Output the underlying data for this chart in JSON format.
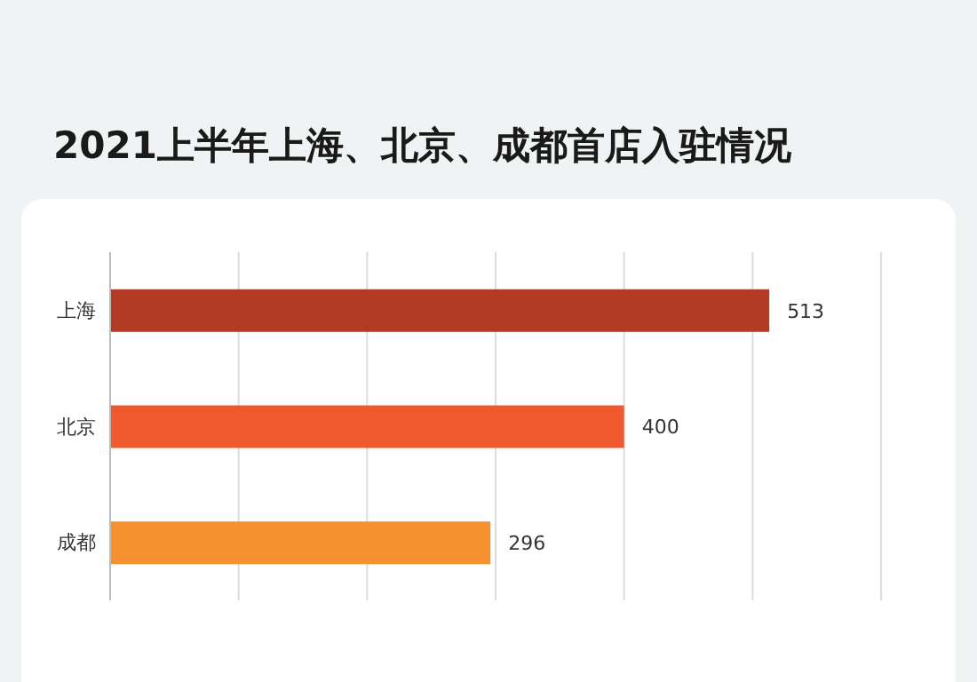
{
  "chart_data": {
    "type": "bar",
    "orientation": "horizontal",
    "title": "2021上半年上海、北京、成都首店入驻情况",
    "categories": [
      "上海",
      "北京",
      "成都"
    ],
    "values": [
      513,
      400,
      296
    ],
    "colors": [
      "#b33a23",
      "#ee5a2e",
      "#f6912f"
    ],
    "xlim": [
      0,
      600
    ],
    "xticks": [
      {
        "value": 0,
        "label": null
      },
      {
        "value": 100,
        "label": null
      },
      {
        "value": 200,
        "label": null
      },
      {
        "value": 300,
        "label": null
      },
      {
        "value": 400,
        "label": null
      },
      {
        "value": 500,
        "label": null
      },
      {
        "value": 600,
        "label": null
      }
    ],
    "tick_labels": "y",
    "grid": "x",
    "data_labels": true
  }
}
